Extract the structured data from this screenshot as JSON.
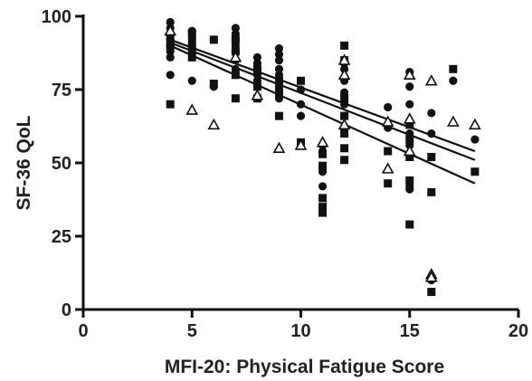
{
  "chart_data": {
    "type": "scatter",
    "xlabel": "MFI-20: Physical Fatigue Score",
    "ylabel": "SF-36 QoL",
    "xlim": [
      0,
      20
    ],
    "ylim": [
      0,
      100
    ],
    "xticks": [
      0,
      5,
      10,
      15,
      20
    ],
    "yticks": [
      0,
      25,
      50,
      75,
      100
    ],
    "grid": false,
    "series": [
      {
        "marker": "filled-circle",
        "color": "#111111",
        "points": [
          [
            4,
            98
          ],
          [
            4,
            96
          ],
          [
            4,
            94
          ],
          [
            4,
            92
          ],
          [
            4,
            90
          ],
          [
            4,
            88
          ],
          [
            4,
            86
          ],
          [
            4,
            80
          ],
          [
            5,
            95
          ],
          [
            5,
            92
          ],
          [
            5,
            88
          ],
          [
            5,
            78
          ],
          [
            6,
            92
          ],
          [
            6,
            76
          ],
          [
            7,
            96
          ],
          [
            7,
            94
          ],
          [
            7,
            92
          ],
          [
            7,
            90
          ],
          [
            7,
            88
          ],
          [
            7,
            85
          ],
          [
            7,
            82
          ],
          [
            8,
            86
          ],
          [
            8,
            84
          ],
          [
            8,
            82
          ],
          [
            8,
            80
          ],
          [
            8,
            78
          ],
          [
            9,
            89
          ],
          [
            9,
            87
          ],
          [
            9,
            85
          ],
          [
            9,
            82
          ],
          [
            9,
            80
          ],
          [
            9,
            76
          ],
          [
            9,
            72
          ],
          [
            10,
            75
          ],
          [
            10,
            70
          ],
          [
            10,
            66
          ],
          [
            11,
            56
          ],
          [
            11,
            54
          ],
          [
            11,
            47
          ],
          [
            11,
            42
          ],
          [
            12,
            84
          ],
          [
            12,
            82
          ],
          [
            12,
            78
          ],
          [
            12,
            74
          ],
          [
            12,
            70
          ],
          [
            12,
            66
          ],
          [
            12,
            62
          ],
          [
            14,
            69
          ],
          [
            14,
            62
          ],
          [
            15,
            81
          ],
          [
            15,
            76
          ],
          [
            15,
            70
          ],
          [
            15,
            64
          ],
          [
            15,
            60
          ],
          [
            15,
            56
          ],
          [
            15,
            42
          ],
          [
            15,
            41
          ],
          [
            16,
            67
          ],
          [
            16,
            60
          ],
          [
            16,
            10
          ],
          [
            17,
            78
          ],
          [
            18,
            58
          ]
        ]
      },
      {
        "marker": "filled-square",
        "color": "#111111",
        "points": [
          [
            4,
            93
          ],
          [
            4,
            90
          ],
          [
            4,
            70
          ],
          [
            5,
            94
          ],
          [
            5,
            90
          ],
          [
            5,
            86
          ],
          [
            6,
            92
          ],
          [
            6,
            77
          ],
          [
            7,
            92
          ],
          [
            7,
            88
          ],
          [
            7,
            80
          ],
          [
            7,
            72
          ],
          [
            8,
            82
          ],
          [
            8,
            76
          ],
          [
            8,
            72
          ],
          [
            9,
            78
          ],
          [
            9,
            74
          ],
          [
            9,
            66
          ],
          [
            10,
            78
          ],
          [
            10,
            57
          ],
          [
            11,
            53
          ],
          [
            11,
            49
          ],
          [
            11,
            38
          ],
          [
            11,
            35
          ],
          [
            11,
            33
          ],
          [
            12,
            90
          ],
          [
            12,
            85
          ],
          [
            12,
            72
          ],
          [
            12,
            66
          ],
          [
            12,
            60
          ],
          [
            12,
            55
          ],
          [
            12,
            51
          ],
          [
            14,
            54
          ],
          [
            14,
            43
          ],
          [
            15,
            63
          ],
          [
            15,
            58
          ],
          [
            15,
            52
          ],
          [
            15,
            44
          ],
          [
            15,
            29
          ],
          [
            16,
            52
          ],
          [
            16,
            40
          ],
          [
            16,
            6
          ],
          [
            17,
            82
          ],
          [
            18,
            47
          ]
        ]
      },
      {
        "marker": "open-triangle",
        "color": "#111111",
        "points": [
          [
            4,
            95
          ],
          [
            5,
            68
          ],
          [
            6,
            63
          ],
          [
            7,
            86
          ],
          [
            8,
            73
          ],
          [
            9,
            55
          ],
          [
            10,
            56
          ],
          [
            11,
            57
          ],
          [
            12,
            85
          ],
          [
            12,
            80
          ],
          [
            12,
            63
          ],
          [
            14,
            48
          ],
          [
            14,
            64
          ],
          [
            15,
            80
          ],
          [
            15,
            65
          ],
          [
            15,
            54
          ],
          [
            16,
            78
          ],
          [
            16,
            12
          ],
          [
            16,
            11
          ],
          [
            17,
            64
          ],
          [
            18,
            63
          ]
        ]
      }
    ],
    "regression_lines": [
      {
        "x": [
          4,
          18
        ],
        "y": [
          92,
          54
        ]
      },
      {
        "x": [
          4,
          18
        ],
        "y": [
          91,
          51
        ]
      },
      {
        "x": [
          4,
          18
        ],
        "y": [
          90,
          43
        ]
      }
    ]
  }
}
